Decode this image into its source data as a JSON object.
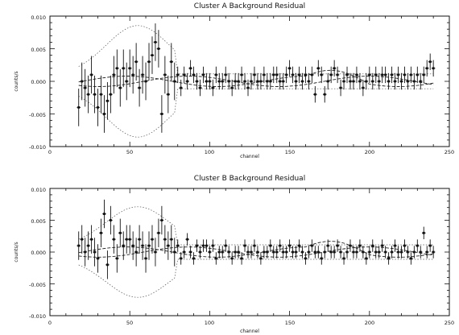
{
  "chart_data": [
    {
      "type": "scatter",
      "title": "Cluster A Background Residual",
      "xlabel": "channel",
      "ylabel": "counts/s",
      "xlim": [
        0,
        250
      ],
      "ylim": [
        -0.01,
        0.01
      ],
      "xticks": [
        "0",
        "50",
        "100",
        "150",
        "200",
        "250"
      ],
      "yticks": [
        "0.010",
        "0.005",
        "0.000",
        "-0.005",
        "-0.010"
      ],
      "grid": false,
      "series": [
        {
          "values": [
            [
              18,
              -0.004
            ],
            [
              20,
              0.0
            ],
            [
              22,
              -0.001
            ],
            [
              24,
              -0.002
            ],
            [
              26,
              0.001
            ],
            [
              28,
              -0.002
            ],
            [
              30,
              -0.004
            ],
            [
              32,
              -0.002
            ],
            [
              34,
              -0.005
            ],
            [
              36,
              -0.003
            ],
            [
              38,
              -0.002
            ],
            [
              40,
              0.001
            ],
            [
              42,
              0.002
            ],
            [
              44,
              -0.001
            ],
            [
              46,
              0.002
            ],
            [
              48,
              0.0
            ],
            [
              50,
              0.002
            ],
            [
              52,
              0.001
            ],
            [
              54,
              0.003
            ],
            [
              56,
              -0.001
            ],
            [
              58,
              0.001
            ],
            [
              60,
              0.0
            ],
            [
              62,
              0.003
            ],
            [
              64,
              0.004
            ],
            [
              66,
              0.006
            ],
            [
              68,
              0.005
            ],
            [
              70,
              -0.005
            ],
            [
              72,
              0.001
            ],
            [
              74,
              -0.002
            ],
            [
              76,
              0.003
            ],
            [
              78,
              0.0
            ],
            [
              80,
              0.001
            ],
            [
              82,
              -0.001
            ],
            [
              84,
              0.001
            ],
            [
              86,
              0.0
            ],
            [
              88,
              0.002
            ],
            [
              90,
              0.001
            ],
            [
              92,
              0.0
            ],
            [
              94,
              -0.001
            ],
            [
              96,
              0.001
            ],
            [
              98,
              0.0
            ],
            [
              100,
              0.0
            ],
            [
              102,
              -0.001
            ],
            [
              104,
              0.001
            ],
            [
              106,
              0.0
            ],
            [
              108,
              0.0
            ],
            [
              110,
              0.001
            ],
            [
              112,
              0.0
            ],
            [
              114,
              -0.001
            ],
            [
              116,
              0.0
            ],
            [
              118,
              0.0
            ],
            [
              120,
              0.001
            ],
            [
              122,
              0.0
            ],
            [
              124,
              -0.001
            ],
            [
              126,
              0.0
            ],
            [
              128,
              0.001
            ],
            [
              130,
              0.0
            ],
            [
              132,
              0.0
            ],
            [
              134,
              0.001
            ],
            [
              136,
              0.0
            ],
            [
              138,
              0.0
            ],
            [
              140,
              0.001
            ],
            [
              142,
              0.001
            ],
            [
              144,
              0.0
            ],
            [
              146,
              0.0
            ],
            [
              148,
              0.001
            ],
            [
              150,
              0.002
            ],
            [
              152,
              0.001
            ],
            [
              154,
              0.0
            ],
            [
              156,
              0.001
            ],
            [
              158,
              0.0
            ],
            [
              160,
              0.001
            ],
            [
              162,
              0.0
            ],
            [
              164,
              0.001
            ],
            [
              166,
              -0.002
            ],
            [
              168,
              0.002
            ],
            [
              170,
              0.001
            ],
            [
              172,
              -0.002
            ],
            [
              174,
              0.0
            ],
            [
              176,
              0.001
            ],
            [
              178,
              0.002
            ],
            [
              180,
              0.001
            ],
            [
              182,
              -0.001
            ],
            [
              184,
              0.0
            ],
            [
              186,
              0.001
            ],
            [
              188,
              0.0
            ],
            [
              190,
              0.0
            ],
            [
              192,
              0.001
            ],
            [
              194,
              0.0
            ],
            [
              196,
              -0.001
            ],
            [
              198,
              0.0
            ],
            [
              200,
              0.001
            ],
            [
              202,
              0.0
            ],
            [
              204,
              0.001
            ],
            [
              206,
              0.0
            ],
            [
              208,
              0.001
            ],
            [
              210,
              0.001
            ],
            [
              212,
              0.0
            ],
            [
              214,
              0.001
            ],
            [
              216,
              0.0
            ],
            [
              218,
              0.001
            ],
            [
              220,
              0.0
            ],
            [
              222,
              0.001
            ],
            [
              224,
              0.0
            ],
            [
              226,
              0.001
            ],
            [
              228,
              0.0
            ],
            [
              230,
              0.001
            ],
            [
              232,
              0.0
            ],
            [
              234,
              0.001
            ],
            [
              236,
              0.002
            ],
            [
              238,
              0.003
            ],
            [
              240,
              0.002
            ]
          ],
          "error": 0.0018
        }
      ]
    },
    {
      "type": "scatter",
      "title": "Cluster B Background Residual",
      "xlabel": "channel",
      "ylabel": "counts/s",
      "xlim": [
        0,
        250
      ],
      "ylim": [
        -0.01,
        0.01
      ],
      "xticks": [
        "0",
        "50",
        "100",
        "150",
        "200",
        "250"
      ],
      "yticks": [
        "0.010",
        "0.005",
        "0.000",
        "-0.005",
        "-0.010"
      ],
      "grid": false,
      "series": [
        {
          "values": [
            [
              18,
              0.001
            ],
            [
              20,
              0.002
            ],
            [
              22,
              0.0
            ],
            [
              24,
              0.001
            ],
            [
              26,
              0.002
            ],
            [
              28,
              0.0
            ],
            [
              30,
              -0.001
            ],
            [
              32,
              0.003
            ],
            [
              34,
              0.006
            ],
            [
              36,
              -0.002
            ],
            [
              38,
              0.005
            ],
            [
              40,
              0.002
            ],
            [
              42,
              -0.001
            ],
            [
              44,
              0.003
            ],
            [
              46,
              0.001
            ],
            [
              48,
              0.002
            ],
            [
              50,
              0.002
            ],
            [
              52,
              0.001
            ],
            [
              54,
              0.0
            ],
            [
              56,
              0.002
            ],
            [
              58,
              0.001
            ],
            [
              60,
              -0.001
            ],
            [
              62,
              0.001
            ],
            [
              64,
              0.002
            ],
            [
              66,
              0.0
            ],
            [
              68,
              0.003
            ],
            [
              70,
              0.005
            ],
            [
              72,
              0.002
            ],
            [
              74,
              0.001
            ],
            [
              76,
              0.002
            ],
            [
              78,
              0.0
            ],
            [
              80,
              0.001
            ],
            [
              82,
              -0.001
            ],
            [
              84,
              0.0
            ],
            [
              86,
              0.002
            ],
            [
              88,
              0.0
            ],
            [
              90,
              -0.001
            ],
            [
              92,
              0.001
            ],
            [
              94,
              0.0
            ],
            [
              96,
              0.001
            ],
            [
              98,
              0.001
            ],
            [
              100,
              0.0
            ],
            [
              102,
              0.001
            ],
            [
              104,
              -0.001
            ],
            [
              106,
              0.0
            ],
            [
              108,
              0.0
            ],
            [
              110,
              0.001
            ],
            [
              112,
              0.0
            ],
            [
              114,
              -0.001
            ],
            [
              116,
              0.0
            ],
            [
              118,
              0.0
            ],
            [
              120,
              -0.001
            ],
            [
              122,
              0.001
            ],
            [
              124,
              0.0
            ],
            [
              126,
              0.0
            ],
            [
              128,
              0.001
            ],
            [
              130,
              0.0
            ],
            [
              132,
              -0.001
            ],
            [
              134,
              0.0
            ],
            [
              136,
              0.0
            ],
            [
              138,
              0.001
            ],
            [
              140,
              0.0
            ],
            [
              142,
              0.0
            ],
            [
              144,
              0.001
            ],
            [
              146,
              0.0
            ],
            [
              148,
              0.0
            ],
            [
              150,
              0.001
            ],
            [
              152,
              0.0
            ],
            [
              154,
              0.0
            ],
            [
              156,
              0.001
            ],
            [
              158,
              0.0
            ],
            [
              160,
              -0.001
            ],
            [
              162,
              0.0
            ],
            [
              164,
              0.001
            ],
            [
              166,
              0.0
            ],
            [
              168,
              0.0
            ],
            [
              170,
              -0.001
            ],
            [
              172,
              0.0
            ],
            [
              174,
              0.001
            ],
            [
              176,
              0.0
            ],
            [
              178,
              0.0
            ],
            [
              180,
              0.001
            ],
            [
              182,
              0.0
            ],
            [
              184,
              -0.001
            ],
            [
              186,
              0.0
            ],
            [
              188,
              0.001
            ],
            [
              190,
              0.0
            ],
            [
              192,
              0.0
            ],
            [
              194,
              0.001
            ],
            [
              196,
              0.0
            ],
            [
              198,
              -0.001
            ],
            [
              200,
              0.0
            ],
            [
              202,
              0.001
            ],
            [
              204,
              0.0
            ],
            [
              206,
              0.0
            ],
            [
              208,
              0.001
            ],
            [
              210,
              0.0
            ],
            [
              212,
              -0.001
            ],
            [
              214,
              0.0
            ],
            [
              216,
              0.001
            ],
            [
              218,
              0.0
            ],
            [
              220,
              0.0
            ],
            [
              222,
              0.001
            ],
            [
              224,
              0.0
            ],
            [
              226,
              -0.001
            ],
            [
              228,
              0.0
            ],
            [
              230,
              0.001
            ],
            [
              232,
              0.0
            ],
            [
              234,
              0.003
            ],
            [
              236,
              0.0
            ],
            [
              238,
              0.001
            ],
            [
              240,
              0.0
            ]
          ],
          "error": 0.0014
        }
      ]
    }
  ]
}
